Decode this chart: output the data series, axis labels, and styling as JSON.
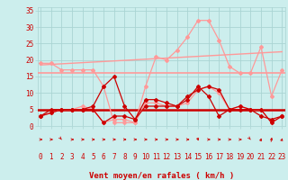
{
  "x": [
    0,
    1,
    2,
    3,
    4,
    5,
    6,
    7,
    8,
    9,
    10,
    11,
    12,
    13,
    14,
    15,
    16,
    17,
    18,
    19,
    20,
    21,
    22,
    23
  ],
  "series_light_gust": [
    19,
    19,
    17,
    17,
    17,
    17,
    12,
    1,
    1,
    1,
    12,
    21,
    20,
    23,
    27,
    32,
    32,
    26,
    18,
    16,
    16,
    24,
    9,
    17
  ],
  "series_light_avg": [
    3,
    4,
    5,
    5,
    6,
    5,
    1,
    2,
    2,
    1,
    7,
    7,
    6,
    6,
    7,
    11,
    12,
    10,
    5,
    6,
    5,
    5,
    1,
    3
  ],
  "series_dark_avg": [
    3,
    4,
    5,
    5,
    5,
    5,
    1,
    3,
    3,
    2,
    6,
    6,
    6,
    6,
    8,
    12,
    9,
    3,
    5,
    5,
    5,
    3,
    2,
    3
  ],
  "series_dark_gust": [
    3,
    5,
    5,
    5,
    5,
    6,
    12,
    15,
    6,
    2,
    8,
    8,
    7,
    6,
    9,
    11,
    12,
    11,
    5,
    6,
    5,
    5,
    1,
    3
  ],
  "trend_start": 18.5,
  "trend_end": 22.5,
  "horiz_light": 16.0,
  "horiz_dark": 5.0,
  "xlabel": "Vent moyen/en rafales ( km/h )",
  "bg_color": "#cceeed",
  "grid_color": "#aad4d3",
  "dark_red": "#cc0000",
  "light_red": "#ff9999",
  "ylim": [
    0,
    36
  ],
  "xlim": [
    -0.3,
    23.3
  ],
  "yticks": [
    0,
    5,
    10,
    15,
    20,
    25,
    30,
    35
  ],
  "arrow_angles": [
    0,
    0,
    -20,
    0,
    0,
    0,
    0,
    0,
    0,
    0,
    0,
    0,
    0,
    0,
    0,
    -45,
    0,
    0,
    0,
    0,
    -20,
    45,
    60,
    45
  ]
}
